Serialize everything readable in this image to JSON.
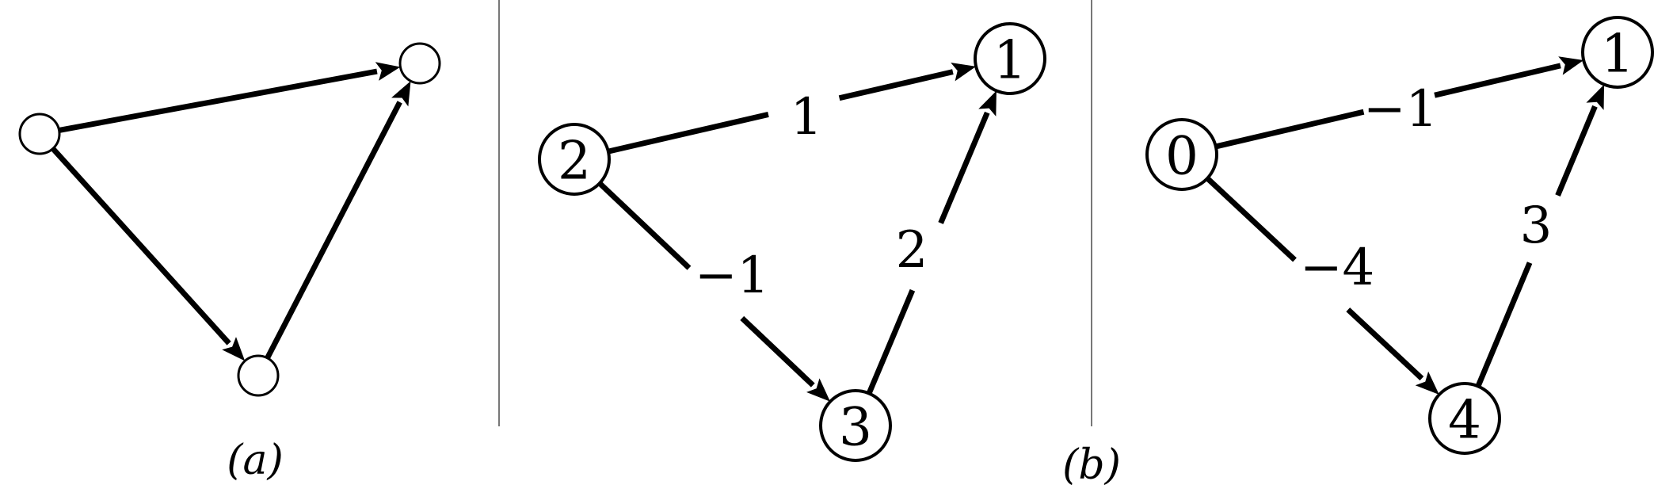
{
  "panels": [
    {
      "id": "a",
      "caption": "(a)",
      "nodes": [
        {
          "id": "L",
          "label": ""
        },
        {
          "id": "TR",
          "label": ""
        },
        {
          "id": "B",
          "label": ""
        }
      ],
      "edges": [
        {
          "from": "L",
          "to": "TR",
          "weight": ""
        },
        {
          "from": "L",
          "to": "B",
          "weight": ""
        },
        {
          "from": "B",
          "to": "TR",
          "weight": ""
        }
      ]
    },
    {
      "id": "b1",
      "caption": "",
      "nodes": [
        {
          "id": "L",
          "label": "2"
        },
        {
          "id": "TR",
          "label": "1"
        },
        {
          "id": "B",
          "label": "3"
        }
      ],
      "edges": [
        {
          "from": "L",
          "to": "TR",
          "weight": "1"
        },
        {
          "from": "L",
          "to": "B",
          "weight": "−1"
        },
        {
          "from": "B",
          "to": "TR",
          "weight": "2"
        }
      ]
    },
    {
      "id": "b2",
      "caption": "",
      "nodes": [
        {
          "id": "L",
          "label": "0"
        },
        {
          "id": "TR",
          "label": "1"
        },
        {
          "id": "B",
          "label": "4"
        }
      ],
      "edges": [
        {
          "from": "L",
          "to": "TR",
          "weight": "−1"
        },
        {
          "from": "L",
          "to": "B",
          "weight": "−4"
        },
        {
          "from": "B",
          "to": "TR",
          "weight": "3"
        }
      ]
    }
  ],
  "figure_caption": "(b)"
}
